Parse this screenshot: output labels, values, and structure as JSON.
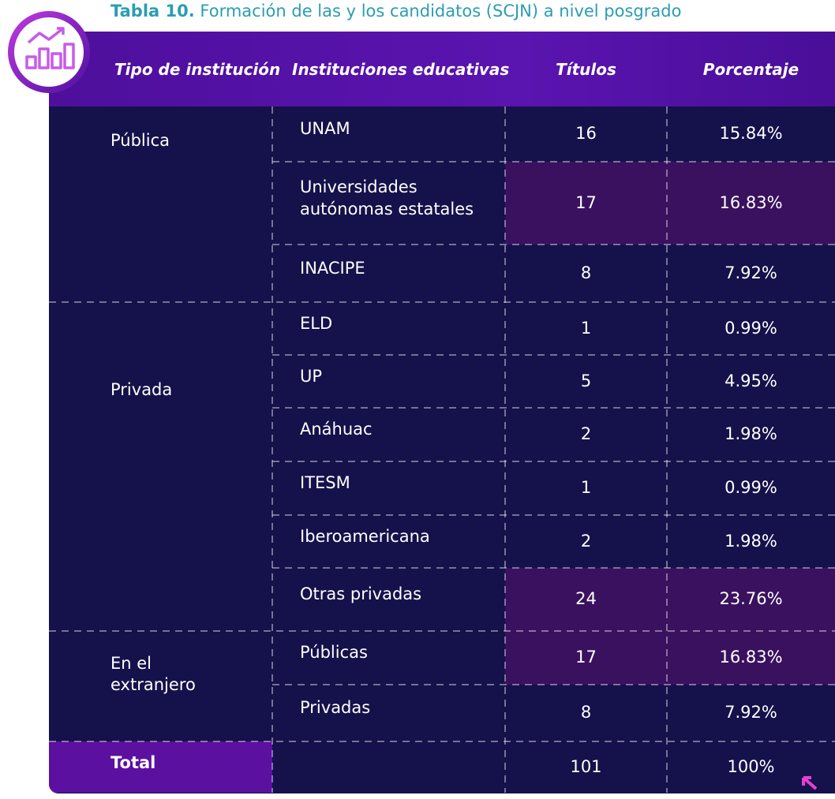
{
  "title": {
    "label": "Tabla 10.",
    "text": "Formación de las y los candidatos (SCJN) a nivel posgrado"
  },
  "table": {
    "header": [
      "Tipo de institución",
      "Instituciones educativas",
      "Títulos",
      "Porcentaje"
    ],
    "groups": [
      {
        "type": "Pública",
        "rows": [
          {
            "institution": "UNAM",
            "titles": 16,
            "percent": "15.84%"
          },
          {
            "institution": "Universidades autónomas estatales",
            "titles": 17,
            "percent": "16.83%"
          },
          {
            "institution": "INACIPE",
            "titles": 8,
            "percent": "7.92%"
          }
        ]
      },
      {
        "type": "Privada",
        "rows": [
          {
            "institution": "ELD",
            "titles": 1,
            "percent": "0.99%"
          },
          {
            "institution": "UP",
            "titles": 5,
            "percent": "4.95%"
          },
          {
            "institution": "Anáhuac",
            "titles": 2,
            "percent": "1.98%"
          },
          {
            "institution": "ITESM",
            "titles": 1,
            "percent": "0.99%"
          },
          {
            "institution": "Iberoamericana",
            "titles": 2,
            "percent": "1.98%"
          },
          {
            "institution": "Otras privadas",
            "titles": 24,
            "percent": "23.76%"
          }
        ]
      },
      {
        "type": "En el extranjero",
        "rows": [
          {
            "institution": "Públicas",
            "titles": 17,
            "percent": "16.83%"
          },
          {
            "institution": "Privadas",
            "titles": 8,
            "percent": "7.92%"
          }
        ]
      }
    ],
    "total": {
      "label": "Total",
      "titles": 101,
      "percent": "100%"
    }
  }
}
